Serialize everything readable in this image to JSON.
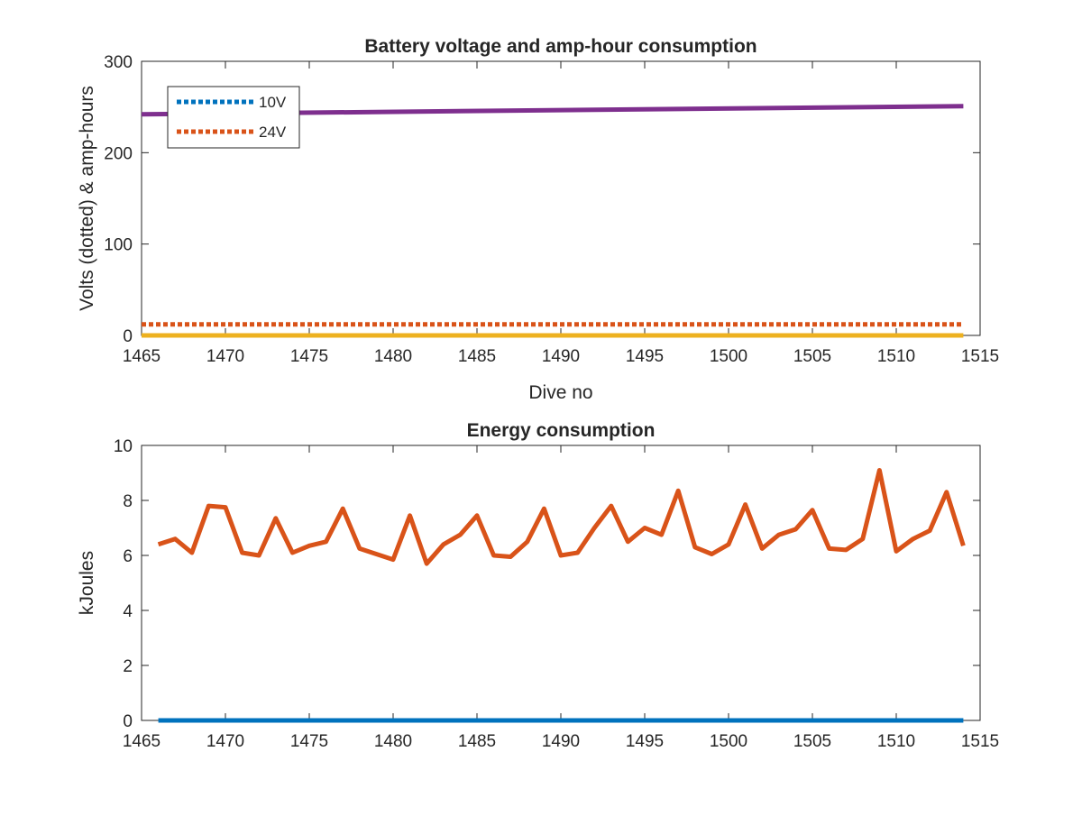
{
  "chart_data": [
    {
      "type": "line",
      "title": "Battery voltage and amp-hour consumption",
      "xlabel": "Dive no",
      "ylabel": "Volts (dotted) & amp-hours",
      "xlim": [
        1465,
        1515
      ],
      "ylim": [
        0,
        300
      ],
      "xticks": [
        "1465",
        "1470",
        "1475",
        "1480",
        "1485",
        "1490",
        "1495",
        "1500",
        "1505",
        "1510",
        "1515"
      ],
      "yticks": [
        "0",
        "100",
        "200",
        "300"
      ],
      "legend_placement": "top-left",
      "grid": false,
      "series": [
        {
          "name": "10V",
          "style": "dotted",
          "color": "#0072BD",
          "x": [
            1465,
            1514
          ],
          "y": [
            0,
            0
          ]
        },
        {
          "name": "24V",
          "style": "dotted",
          "color": "#D95319",
          "x": [
            1465,
            1514
          ],
          "y": [
            12,
            12
          ]
        },
        {
          "style": "solid",
          "color": "#EDB120",
          "x": [
            1465,
            1514
          ],
          "y": [
            0,
            0
          ]
        },
        {
          "style": "solid",
          "color": "#7E2F8E",
          "x": [
            1465,
            1514
          ],
          "y": [
            242,
            251
          ]
        }
      ]
    },
    {
      "type": "line",
      "title": "Energy consumption",
      "xlabel": "",
      "ylabel": "kJoules",
      "xlim": [
        1465,
        1515
      ],
      "ylim": [
        0,
        10
      ],
      "xticks": [
        "1465",
        "1470",
        "1475",
        "1480",
        "1485",
        "1490",
        "1495",
        "1500",
        "1505",
        "1510",
        "1515"
      ],
      "yticks": [
        "0",
        "2",
        "4",
        "6",
        "8",
        "10"
      ],
      "grid": false,
      "series": [
        {
          "style": "solid",
          "color": "#0072BD",
          "x": [
            1466,
            1514
          ],
          "y": [
            0,
            0
          ]
        },
        {
          "style": "solid",
          "color": "#D95319",
          "x": [
            1466,
            1467,
            1468,
            1469,
            1470,
            1471,
            1472,
            1473,
            1474,
            1475,
            1476,
            1477,
            1478,
            1479,
            1480,
            1481,
            1482,
            1483,
            1484,
            1485,
            1486,
            1487,
            1488,
            1489,
            1490,
            1491,
            1492,
            1493,
            1494,
            1495,
            1496,
            1497,
            1498,
            1499,
            1500,
            1501,
            1502,
            1503,
            1504,
            1505,
            1506,
            1507,
            1508,
            1509,
            1510,
            1511,
            1512,
            1513,
            1514
          ],
          "y": [
            6.4,
            6.6,
            6.1,
            7.8,
            7.75,
            6.1,
            6.0,
            7.35,
            6.1,
            6.35,
            6.5,
            7.7,
            6.25,
            6.05,
            5.85,
            7.45,
            5.7,
            6.4,
            6.75,
            7.45,
            6.0,
            5.95,
            6.5,
            7.7,
            6.0,
            6.1,
            7.0,
            7.8,
            6.5,
            7.0,
            6.75,
            8.35,
            6.3,
            6.05,
            6.4,
            7.85,
            6.25,
            6.75,
            6.95,
            7.65,
            6.25,
            6.2,
            6.6,
            9.1,
            6.15,
            6.6,
            6.9,
            8.3,
            6.35
          ]
        }
      ]
    }
  ]
}
